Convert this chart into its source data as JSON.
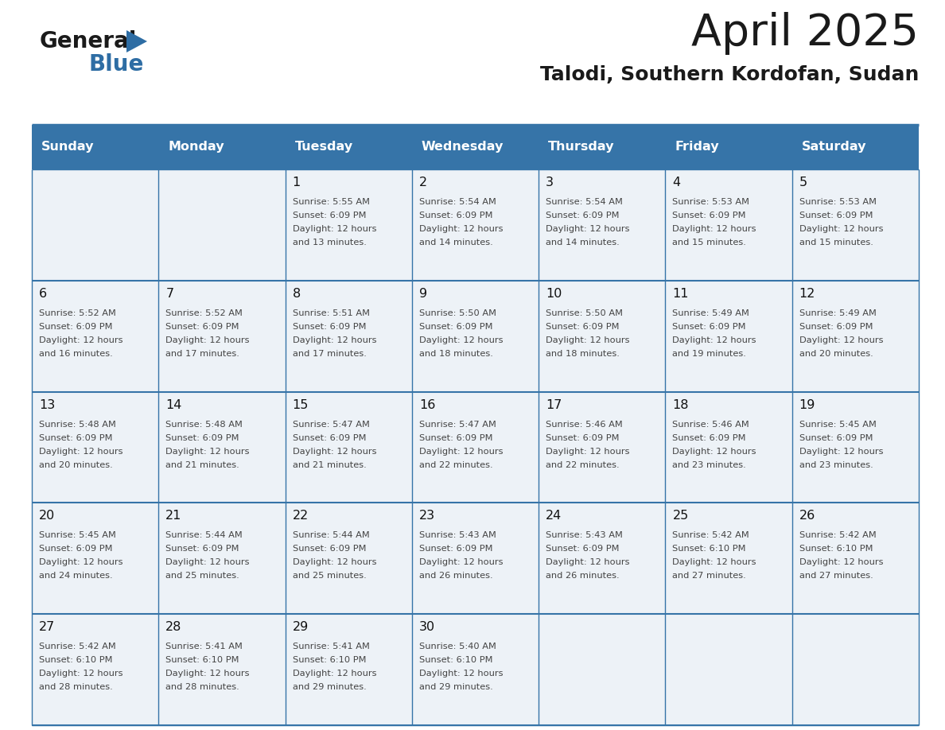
{
  "title": "April 2025",
  "subtitle": "Talodi, Southern Kordofan, Sudan",
  "header_color": "#3674A8",
  "header_text_color": "#FFFFFF",
  "cell_bg_color": "#EDF2F7",
  "border_color": "#3674A8",
  "text_color": "#444444",
  "day_num_color": "#111111",
  "day_headers": [
    "Sunday",
    "Monday",
    "Tuesday",
    "Wednesday",
    "Thursday",
    "Friday",
    "Saturday"
  ],
  "days_data": [
    {
      "day": 1,
      "col": 2,
      "row": 0,
      "sunrise": "5:55 AM",
      "sunset": "6:09 PM",
      "dl1": "12 hours",
      "dl2": "and 13 minutes."
    },
    {
      "day": 2,
      "col": 3,
      "row": 0,
      "sunrise": "5:54 AM",
      "sunset": "6:09 PM",
      "dl1": "12 hours",
      "dl2": "and 14 minutes."
    },
    {
      "day": 3,
      "col": 4,
      "row": 0,
      "sunrise": "5:54 AM",
      "sunset": "6:09 PM",
      "dl1": "12 hours",
      "dl2": "and 14 minutes."
    },
    {
      "day": 4,
      "col": 5,
      "row": 0,
      "sunrise": "5:53 AM",
      "sunset": "6:09 PM",
      "dl1": "12 hours",
      "dl2": "and 15 minutes."
    },
    {
      "day": 5,
      "col": 6,
      "row": 0,
      "sunrise": "5:53 AM",
      "sunset": "6:09 PM",
      "dl1": "12 hours",
      "dl2": "and 15 minutes."
    },
    {
      "day": 6,
      "col": 0,
      "row": 1,
      "sunrise": "5:52 AM",
      "sunset": "6:09 PM",
      "dl1": "12 hours",
      "dl2": "and 16 minutes."
    },
    {
      "day": 7,
      "col": 1,
      "row": 1,
      "sunrise": "5:52 AM",
      "sunset": "6:09 PM",
      "dl1": "12 hours",
      "dl2": "and 17 minutes."
    },
    {
      "day": 8,
      "col": 2,
      "row": 1,
      "sunrise": "5:51 AM",
      "sunset": "6:09 PM",
      "dl1": "12 hours",
      "dl2": "and 17 minutes."
    },
    {
      "day": 9,
      "col": 3,
      "row": 1,
      "sunrise": "5:50 AM",
      "sunset": "6:09 PM",
      "dl1": "12 hours",
      "dl2": "and 18 minutes."
    },
    {
      "day": 10,
      "col": 4,
      "row": 1,
      "sunrise": "5:50 AM",
      "sunset": "6:09 PM",
      "dl1": "12 hours",
      "dl2": "and 18 minutes."
    },
    {
      "day": 11,
      "col": 5,
      "row": 1,
      "sunrise": "5:49 AM",
      "sunset": "6:09 PM",
      "dl1": "12 hours",
      "dl2": "and 19 minutes."
    },
    {
      "day": 12,
      "col": 6,
      "row": 1,
      "sunrise": "5:49 AM",
      "sunset": "6:09 PM",
      "dl1": "12 hours",
      "dl2": "and 20 minutes."
    },
    {
      "day": 13,
      "col": 0,
      "row": 2,
      "sunrise": "5:48 AM",
      "sunset": "6:09 PM",
      "dl1": "12 hours",
      "dl2": "and 20 minutes."
    },
    {
      "day": 14,
      "col": 1,
      "row": 2,
      "sunrise": "5:48 AM",
      "sunset": "6:09 PM",
      "dl1": "12 hours",
      "dl2": "and 21 minutes."
    },
    {
      "day": 15,
      "col": 2,
      "row": 2,
      "sunrise": "5:47 AM",
      "sunset": "6:09 PM",
      "dl1": "12 hours",
      "dl2": "and 21 minutes."
    },
    {
      "day": 16,
      "col": 3,
      "row": 2,
      "sunrise": "5:47 AM",
      "sunset": "6:09 PM",
      "dl1": "12 hours",
      "dl2": "and 22 minutes."
    },
    {
      "day": 17,
      "col": 4,
      "row": 2,
      "sunrise": "5:46 AM",
      "sunset": "6:09 PM",
      "dl1": "12 hours",
      "dl2": "and 22 minutes."
    },
    {
      "day": 18,
      "col": 5,
      "row": 2,
      "sunrise": "5:46 AM",
      "sunset": "6:09 PM",
      "dl1": "12 hours",
      "dl2": "and 23 minutes."
    },
    {
      "day": 19,
      "col": 6,
      "row": 2,
      "sunrise": "5:45 AM",
      "sunset": "6:09 PM",
      "dl1": "12 hours",
      "dl2": "and 23 minutes."
    },
    {
      "day": 20,
      "col": 0,
      "row": 3,
      "sunrise": "5:45 AM",
      "sunset": "6:09 PM",
      "dl1": "12 hours",
      "dl2": "and 24 minutes."
    },
    {
      "day": 21,
      "col": 1,
      "row": 3,
      "sunrise": "5:44 AM",
      "sunset": "6:09 PM",
      "dl1": "12 hours",
      "dl2": "and 25 minutes."
    },
    {
      "day": 22,
      "col": 2,
      "row": 3,
      "sunrise": "5:44 AM",
      "sunset": "6:09 PM",
      "dl1": "12 hours",
      "dl2": "and 25 minutes."
    },
    {
      "day": 23,
      "col": 3,
      "row": 3,
      "sunrise": "5:43 AM",
      "sunset": "6:09 PM",
      "dl1": "12 hours",
      "dl2": "and 26 minutes."
    },
    {
      "day": 24,
      "col": 4,
      "row": 3,
      "sunrise": "5:43 AM",
      "sunset": "6:09 PM",
      "dl1": "12 hours",
      "dl2": "and 26 minutes."
    },
    {
      "day": 25,
      "col": 5,
      "row": 3,
      "sunrise": "5:42 AM",
      "sunset": "6:10 PM",
      "dl1": "12 hours",
      "dl2": "and 27 minutes."
    },
    {
      "day": 26,
      "col": 6,
      "row": 3,
      "sunrise": "5:42 AM",
      "sunset": "6:10 PM",
      "dl1": "12 hours",
      "dl2": "and 27 minutes."
    },
    {
      "day": 27,
      "col": 0,
      "row": 4,
      "sunrise": "5:42 AM",
      "sunset": "6:10 PM",
      "dl1": "12 hours",
      "dl2": "and 28 minutes."
    },
    {
      "day": 28,
      "col": 1,
      "row": 4,
      "sunrise": "5:41 AM",
      "sunset": "6:10 PM",
      "dl1": "12 hours",
      "dl2": "and 28 minutes."
    },
    {
      "day": 29,
      "col": 2,
      "row": 4,
      "sunrise": "5:41 AM",
      "sunset": "6:10 PM",
      "dl1": "12 hours",
      "dl2": "and 29 minutes."
    },
    {
      "day": 30,
      "col": 3,
      "row": 4,
      "sunrise": "5:40 AM",
      "sunset": "6:10 PM",
      "dl1": "12 hours",
      "dl2": "and 29 minutes."
    }
  ]
}
